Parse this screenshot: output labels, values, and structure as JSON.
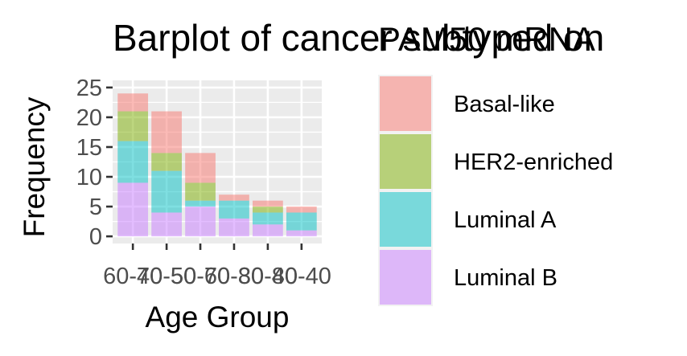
{
  "chart_data": {
    "type": "bar",
    "stacked": true,
    "title": "Barplot of cancer subtyped on",
    "xlabel": "Age Group",
    "ylabel": "Frequency",
    "legend_title": "PAM50 mRNA",
    "legend_position": "right",
    "grid": true,
    "ylim": [
      0,
      25
    ],
    "yticks": [
      0,
      5,
      10,
      15,
      20,
      25
    ],
    "categories": [
      "60-70",
      "40-50",
      "50-60",
      "70-80",
      "30-40",
      "80-40"
    ],
    "series": [
      {
        "name": "Basal-like",
        "color": "#F8766D",
        "values": [
          3,
          7,
          5,
          1,
          1,
          1
        ]
      },
      {
        "name": "HER2-enriched",
        "color": "#7CAE00",
        "values": [
          5,
          3,
          3,
          0,
          1,
          0
        ]
      },
      {
        "name": "Luminal A",
        "color": "#00BFC4",
        "values": [
          7,
          7,
          1,
          3,
          2,
          3
        ]
      },
      {
        "name": "Luminal B",
        "color": "#C77CFF",
        "values": [
          9,
          4,
          5,
          3,
          2,
          1
        ]
      }
    ]
  }
}
